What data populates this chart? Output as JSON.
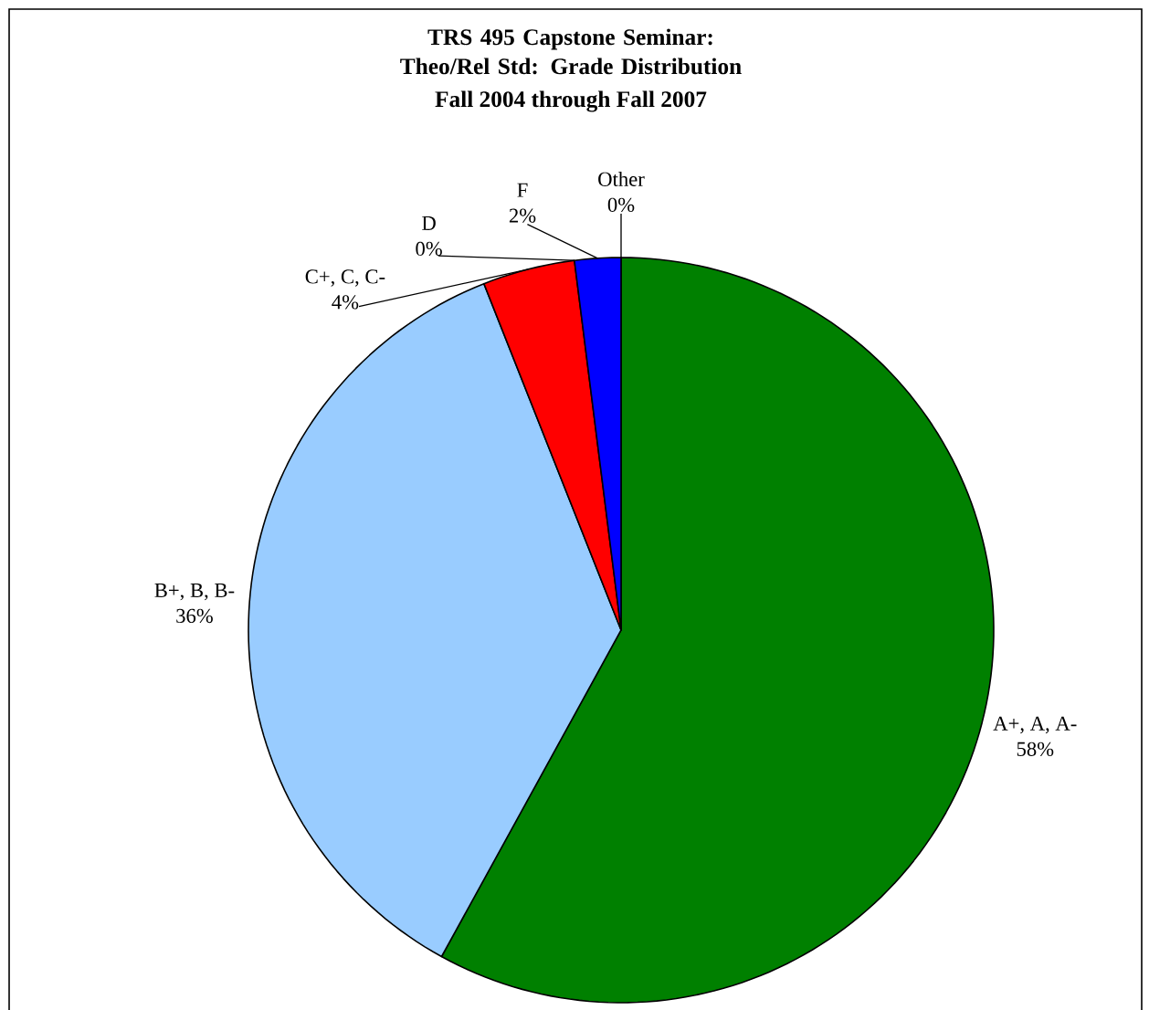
{
  "chart_data": {
    "type": "pie",
    "title": "TRS 495 Capstone Seminar: Theo/Rel Std: Grade Distribution",
    "subtitle": "Fall 2004 through Fall 2007",
    "categories": [
      "A+, A, A-",
      "B+, B, B-",
      "C+, C, C-",
      "D",
      "F",
      "Other"
    ],
    "values": [
      58,
      36,
      4,
      0,
      2,
      0
    ],
    "value_labels": [
      "58%",
      "36%",
      "4%",
      "0%",
      "2%",
      "0%"
    ],
    "colors": [
      "#008000",
      "#99ccff",
      "#ff0000",
      "#ffff00",
      "#0000ff",
      "#00ffff"
    ]
  }
}
